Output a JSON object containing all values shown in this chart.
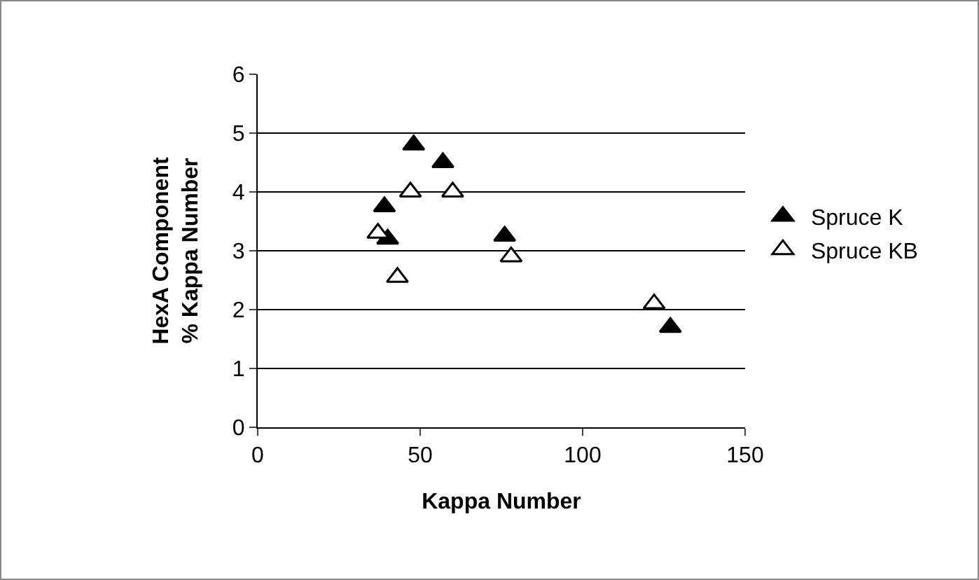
{
  "chart_data": {
    "type": "scatter",
    "xlabel": "Kappa Number",
    "ylabel": "HexA Component\n% Kappa Number",
    "xlim": [
      0,
      150
    ],
    "xticks": [
      0,
      50,
      100,
      150
    ],
    "ylim": [
      0,
      6
    ],
    "yticks": [
      0,
      1,
      2,
      3,
      4,
      5,
      6
    ],
    "grid": "y",
    "legend": "right",
    "marker": "triangle",
    "series": [
      {
        "name": "Spruce K",
        "color": "#000000",
        "x": [
          48,
          57,
          39,
          40,
          76,
          127
        ],
        "values": [
          4.8,
          4.5,
          3.75,
          3.2,
          3.25,
          1.7
        ]
      },
      {
        "name": "Spruce KB",
        "color": "#ffffff",
        "x": [
          47,
          60,
          37,
          43,
          78,
          122
        ],
        "values": [
          4.0,
          4.0,
          3.3,
          2.55,
          2.9,
          2.1
        ]
      }
    ]
  }
}
